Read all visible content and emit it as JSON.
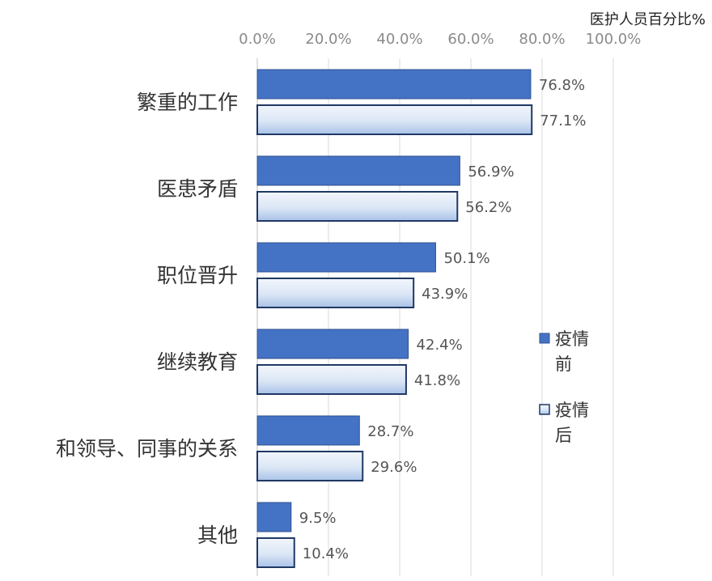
{
  "chart_data": {
    "type": "bar",
    "orientation": "horizontal",
    "unit_label": "医护人员百分比%",
    "categories": [
      "繁重的工作",
      "医患矛盾",
      "职位晋升",
      "继续教育",
      "和领导、同事的关系",
      "其他"
    ],
    "series": [
      {
        "name": "疫情前",
        "values": [
          76.8,
          56.9,
          50.1,
          42.4,
          28.7,
          9.5
        ],
        "labels": [
          "76.8%",
          "56.9%",
          "50.1%",
          "42.4%",
          "28.7%",
          "9.5%"
        ],
        "color": "#4472c4"
      },
      {
        "name": "疫情后",
        "values": [
          77.1,
          56.2,
          43.9,
          41.8,
          29.6,
          10.4
        ],
        "labels": [
          "77.1%",
          "56.2%",
          "43.9%",
          "41.8%",
          "29.6%",
          "10.4%"
        ],
        "color": "#dbe6f5"
      }
    ],
    "xlim": [
      0,
      100
    ],
    "x_ticks": [
      0,
      20,
      40,
      60,
      80,
      100
    ],
    "x_tick_labels": [
      "0.0%",
      "20.0%",
      "40.0%",
      "60.0%",
      "80.0%",
      "100.0%"
    ],
    "grid": true,
    "legend_position": "right",
    "legend": [
      {
        "lines": [
          "疫情",
          "前"
        ]
      },
      {
        "lines": [
          "疫情",
          "后"
        ]
      }
    ]
  }
}
